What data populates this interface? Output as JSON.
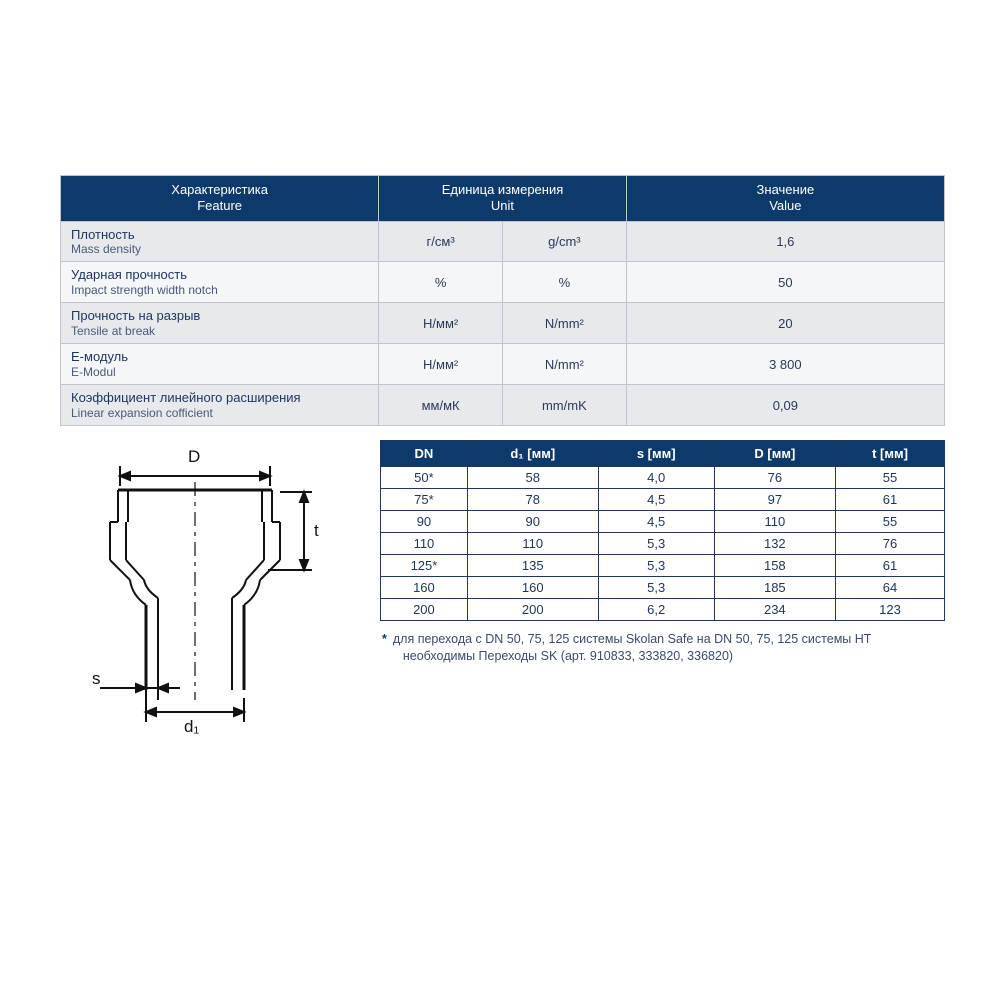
{
  "colors": {
    "header_bg": "#0d3a6b",
    "header_text": "#ffffff",
    "row_odd": "#e7e9ec",
    "row_even": "#f5f6f7",
    "border": "#bfc5cc",
    "text_main": "#20365f",
    "dims_border": "#20365f"
  },
  "props_table": {
    "headers": {
      "feature_ru": "Характеристика",
      "feature_en": "Feature",
      "unit_ru": "Единица измерения",
      "unit_en": "Unit",
      "value_ru": "Значение",
      "value_en": "Value"
    },
    "rows": [
      {
        "name_ru": "Плотность",
        "name_en": "Mass density",
        "unit_ru": "г/см³",
        "unit_en": "g/cm³",
        "value": "1,6"
      },
      {
        "name_ru": "Ударная прочность",
        "name_en": "Impact strength width notch",
        "unit_ru": "%",
        "unit_en": "%",
        "value": "50"
      },
      {
        "name_ru": "Прочность на разрыв",
        "name_en": "Tensile at break",
        "unit_ru": "Н/мм²",
        "unit_en": "N/mm²",
        "value": "20"
      },
      {
        "name_ru": "Е-модуль",
        "name_en": "E-Modul",
        "unit_ru": "Н/мм²",
        "unit_en": "N/mm²",
        "value": "3 800"
      },
      {
        "name_ru": "Коэффициент линейного расширения",
        "name_en": "Linear expansion cofficient",
        "unit_ru": "мм/мК",
        "unit_en": "mm/mK",
        "value": "0,09"
      }
    ],
    "col_widths_pct": [
      36,
      14,
      14,
      36
    ]
  },
  "diagram": {
    "labels": {
      "D": "D",
      "d1": "d₁",
      "s": "s",
      "t": "t"
    }
  },
  "dims_table": {
    "headers": [
      "DN",
      "d₁ [мм]",
      "s [мм]",
      "D [мм]",
      "t [мм]"
    ],
    "rows": [
      [
        "50*",
        "58",
        "4,0",
        "76",
        "55"
      ],
      [
        "75*",
        "78",
        "4,5",
        "97",
        "61"
      ],
      [
        "90",
        "90",
        "4,5",
        "110",
        "55"
      ],
      [
        "110",
        "110",
        "5,3",
        "132",
        "76"
      ],
      [
        "125*",
        "135",
        "5,3",
        "158",
        "61"
      ],
      [
        "160",
        "160",
        "5,3",
        "185",
        "64"
      ],
      [
        "200",
        "200",
        "6,2",
        "234",
        "123"
      ]
    ]
  },
  "footnote": {
    "marker": "*",
    "line1": "для перехода с DN 50, 75, 125 системы Skolan Safe на DN 50, 75, 125 системы HT",
    "line2": "необходимы Переходы SK (арт. 910833, 333820, 336820)"
  }
}
